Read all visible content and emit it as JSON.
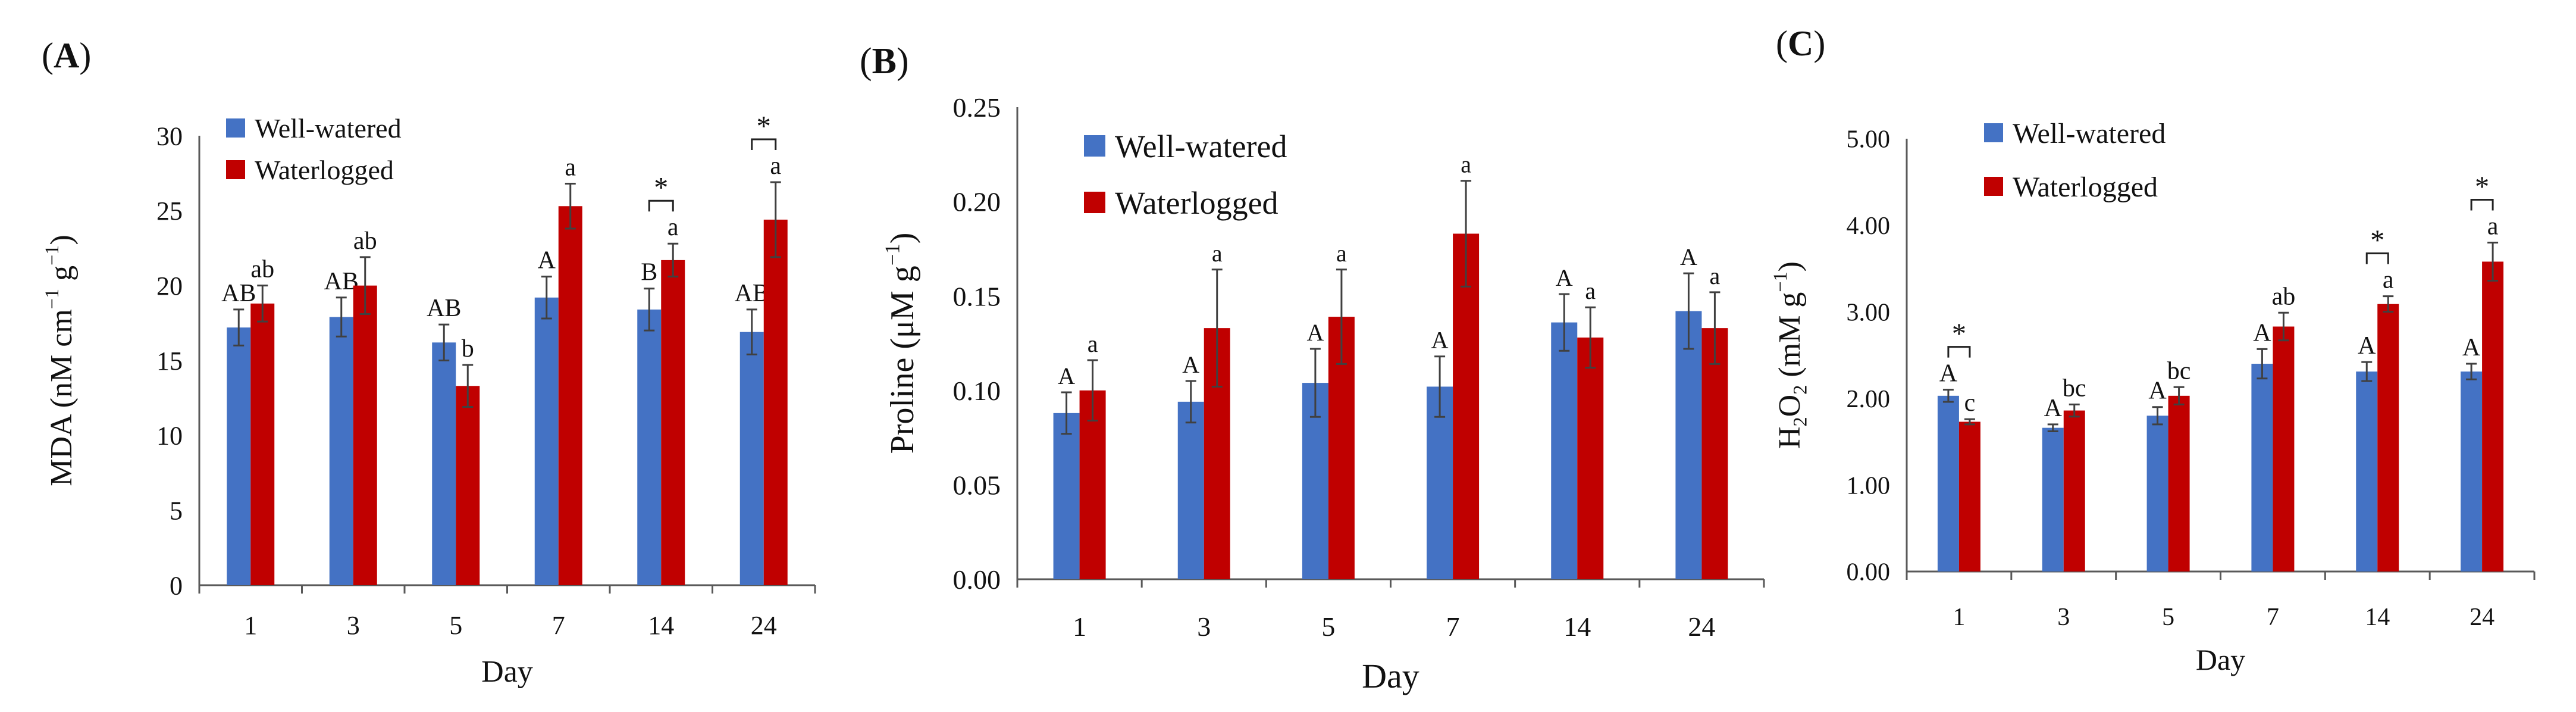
{
  "colors": {
    "well": "#4472c4",
    "water": "#c00000",
    "axis": "#595959",
    "error": "#404040"
  },
  "chart_data": [
    {
      "type": "bar",
      "panel_label": "A",
      "xlabel": "Day",
      "ylabel_parts": [
        {
          "t": "MDA (nM cm",
          "s": "normal"
        },
        {
          "t": "−1",
          "s": "sup"
        },
        {
          "t": " g",
          "s": "normal"
        },
        {
          "t": "−1",
          "s": "sup"
        },
        {
          "t": ")",
          "s": "normal"
        }
      ],
      "ylim": [
        0,
        30
      ],
      "yticks": [
        0,
        5,
        10,
        15,
        20,
        25,
        30
      ],
      "ytick_labels": [
        "0",
        "5",
        "10",
        "15",
        "20",
        "25",
        "30"
      ],
      "categories": [
        "1",
        "3",
        "5",
        "7",
        "14",
        "24"
      ],
      "legend": [
        "Well-watered",
        "Waterlogged"
      ],
      "series": [
        {
          "name": "Well-watered",
          "values": [
            17.2,
            17.9,
            16.2,
            19.2,
            18.4,
            16.9
          ],
          "errors": [
            1.2,
            1.3,
            1.2,
            1.4,
            1.4,
            1.5
          ],
          "letters": [
            "AB",
            "AB",
            "AB",
            "A",
            "B",
            "AB"
          ]
        },
        {
          "name": "Waterlogged",
          "values": [
            18.8,
            20.0,
            13.3,
            25.3,
            21.7,
            24.4
          ],
          "errors": [
            1.2,
            1.9,
            1.4,
            1.5,
            1.1,
            2.5
          ],
          "letters": [
            "ab",
            "ab",
            "b",
            "a",
            "a",
            "a"
          ]
        }
      ],
      "significance": [
        {
          "category": "14",
          "label": "*"
        },
        {
          "category": "24",
          "label": "*"
        }
      ]
    },
    {
      "type": "bar",
      "panel_label": "B",
      "xlabel": "Day",
      "ylabel_parts": [
        {
          "t": "Proline (μM g",
          "s": "normal"
        },
        {
          "t": "−1",
          "s": "sup"
        },
        {
          "t": ")",
          "s": "normal"
        }
      ],
      "ylim": [
        0,
        0.25
      ],
      "yticks": [
        0,
        0.05,
        0.1,
        0.15,
        0.2,
        0.25
      ],
      "ytick_labels": [
        "0.00",
        "0.05",
        "0.10",
        "0.15",
        "0.20",
        "0.25"
      ],
      "categories": [
        "1",
        "3",
        "5",
        "7",
        "14",
        "24"
      ],
      "legend": [
        "Well-watered",
        "Waterlogged"
      ],
      "series": [
        {
          "name": "Well-watered",
          "values": [
            0.088,
            0.094,
            0.104,
            0.102,
            0.136,
            0.142
          ],
          "errors": [
            0.011,
            0.011,
            0.018,
            0.016,
            0.015,
            0.02
          ],
          "letters": [
            "A",
            "A",
            "A",
            "A",
            "A",
            "A"
          ]
        },
        {
          "name": "Waterlogged",
          "values": [
            0.1,
            0.133,
            0.139,
            0.183,
            0.128,
            0.133
          ],
          "errors": [
            0.016,
            0.031,
            0.025,
            0.028,
            0.016,
            0.019
          ],
          "letters": [
            "a",
            "a",
            "a",
            "a",
            "a",
            "a"
          ]
        }
      ],
      "significance": []
    },
    {
      "type": "bar",
      "panel_label": "C",
      "xlabel": "Day",
      "ylabel_parts": [
        {
          "t": "H",
          "s": "normal"
        },
        {
          "t": "2",
          "s": "sub"
        },
        {
          "t": "O",
          "s": "normal"
        },
        {
          "t": "2",
          "s": "sub"
        },
        {
          "t": " (mM g",
          "s": "normal"
        },
        {
          "t": "−1",
          "s": "sup"
        },
        {
          "t": ")",
          "s": "normal"
        }
      ],
      "ylim": [
        0,
        5
      ],
      "yticks": [
        0,
        1,
        2,
        3,
        4,
        5
      ],
      "ytick_labels": [
        "0.00",
        "1.00",
        "2.00",
        "3.00",
        "4.00",
        "5.00"
      ],
      "categories": [
        "1",
        "3",
        "5",
        "7",
        "14",
        "24"
      ],
      "legend": [
        "Well-watered",
        "Waterlogged"
      ],
      "series": [
        {
          "name": "Well-watered",
          "values": [
            2.03,
            1.66,
            1.8,
            2.4,
            2.31,
            2.31
          ],
          "errors": [
            0.07,
            0.04,
            0.1,
            0.17,
            0.11,
            0.09
          ],
          "letters": [
            "A",
            "A",
            "A",
            "A",
            "A",
            "A"
          ]
        },
        {
          "name": "Waterlogged",
          "values": [
            1.73,
            1.86,
            2.03,
            2.83,
            3.09,
            3.58
          ],
          "errors": [
            0.03,
            0.07,
            0.1,
            0.16,
            0.09,
            0.22
          ],
          "letters": [
            "c",
            "bc",
            "bc",
            "ab",
            "a",
            "a"
          ]
        }
      ],
      "significance": [
        {
          "category": "1",
          "label": "*"
        },
        {
          "category": "14",
          "label": "*"
        },
        {
          "category": "24",
          "label": "*"
        }
      ]
    }
  ]
}
